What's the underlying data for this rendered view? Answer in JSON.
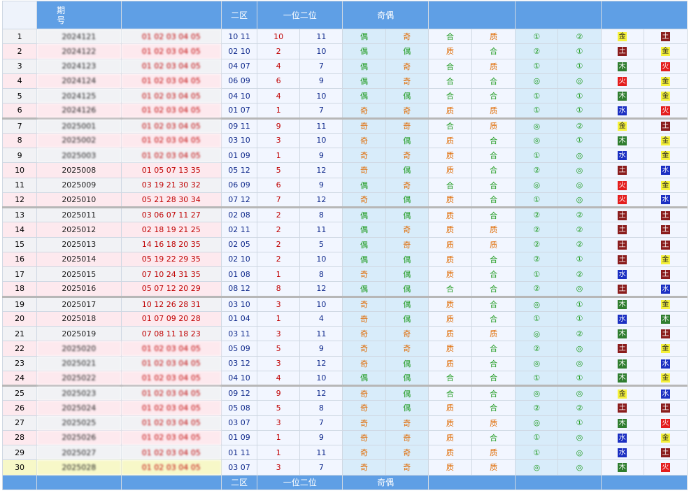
{
  "header": {
    "period_line1": "期",
    "period_line2": "号",
    "col_zone2": "二区",
    "col_pos12": "一位二位",
    "col_oddeven": "奇偶"
  },
  "footer": {
    "col_zone2": "二区",
    "col_pos12": "一位二位",
    "col_oddeven": "奇偶"
  },
  "rows": [
    {
      "idx": "1",
      "period": "2024121",
      "nums": "01 02 03 04 05",
      "zone": "10 11",
      "p1": "10",
      "p2": "11",
      "oe1": "偶",
      "oe2": "奇",
      "cp1": "合",
      "cp2": "质",
      "m1": "①",
      "m2": "②",
      "w1": "金",
      "w2": "土",
      "w1c": "gold",
      "w2c": "earth"
    },
    {
      "idx": "2",
      "period": "2024122",
      "nums": "01 02 03 04 05",
      "zone": "02 10",
      "p1": "2",
      "p2": "10",
      "oe1": "偶",
      "oe2": "偶",
      "cp1": "质",
      "cp2": "合",
      "m1": "②",
      "m2": "①",
      "w1": "土",
      "w2": "金",
      "w1c": "earth",
      "w2c": "gold"
    },
    {
      "idx": "3",
      "period": "2024123",
      "nums": "01 02 03 04 05",
      "zone": "04 07",
      "p1": "4",
      "p2": "7",
      "oe1": "偶",
      "oe2": "奇",
      "cp1": "合",
      "cp2": "质",
      "m1": "①",
      "m2": "①",
      "w1": "木",
      "w2": "火",
      "w1c": "wood",
      "w2c": "fire"
    },
    {
      "idx": "4",
      "period": "2024124",
      "nums": "01 02 03 04 05",
      "zone": "06 09",
      "p1": "6",
      "p2": "9",
      "oe1": "偶",
      "oe2": "奇",
      "cp1": "合",
      "cp2": "合",
      "m1": "◎",
      "m2": "◎",
      "w1": "火",
      "w2": "金",
      "w1c": "fire",
      "w2c": "gold"
    },
    {
      "idx": "5",
      "period": "2024125",
      "nums": "01 02 03 04 05",
      "zone": "04 10",
      "p1": "4",
      "p2": "10",
      "oe1": "偶",
      "oe2": "偶",
      "cp1": "合",
      "cp2": "合",
      "m1": "①",
      "m2": "①",
      "w1": "木",
      "w2": "金",
      "w1c": "wood",
      "w2c": "gold"
    },
    {
      "idx": "6",
      "period": "2024126",
      "nums": "01 02 03 04 05",
      "zone": "01 07",
      "p1": "1",
      "p2": "7",
      "oe1": "奇",
      "oe2": "奇",
      "cp1": "质",
      "cp2": "质",
      "m1": "①",
      "m2": "①",
      "w1": "水",
      "w2": "火",
      "w1c": "water",
      "w2c": "fire"
    },
    {
      "idx": "7",
      "period": "2025001",
      "nums": "01 02 03 04 05",
      "zone": "09 11",
      "p1": "9",
      "p2": "11",
      "oe1": "奇",
      "oe2": "奇",
      "cp1": "合",
      "cp2": "质",
      "m1": "◎",
      "m2": "②",
      "w1": "金",
      "w2": "土",
      "w1c": "gold",
      "w2c": "earth"
    },
    {
      "idx": "8",
      "period": "2025002",
      "nums": "01 02 03 04 05",
      "zone": "03 10",
      "p1": "3",
      "p2": "10",
      "oe1": "奇",
      "oe2": "偶",
      "cp1": "质",
      "cp2": "合",
      "m1": "◎",
      "m2": "①",
      "w1": "木",
      "w2": "金",
      "w1c": "wood",
      "w2c": "gold"
    },
    {
      "idx": "9",
      "period": "2025003",
      "nums": "01 02 03 04 05",
      "zone": "01 09",
      "p1": "1",
      "p2": "9",
      "oe1": "奇",
      "oe2": "奇",
      "cp1": "质",
      "cp2": "合",
      "m1": "①",
      "m2": "◎",
      "w1": "水",
      "w2": "金",
      "w1c": "water",
      "w2c": "gold"
    },
    {
      "idx": "10",
      "period": "2025008",
      "nums": "01 05 07 13 35",
      "zone": "05 12",
      "p1": "5",
      "p2": "12",
      "oe1": "奇",
      "oe2": "偶",
      "cp1": "质",
      "cp2": "合",
      "m1": "②",
      "m2": "◎",
      "w1": "土",
      "w2": "水",
      "w1c": "earth",
      "w2c": "water"
    },
    {
      "idx": "11",
      "period": "2025009",
      "nums": "03 19 21 30 32",
      "zone": "06 09",
      "p1": "6",
      "p2": "9",
      "oe1": "偶",
      "oe2": "奇",
      "cp1": "合",
      "cp2": "合",
      "m1": "◎",
      "m2": "◎",
      "w1": "火",
      "w2": "金",
      "w1c": "fire",
      "w2c": "gold"
    },
    {
      "idx": "12",
      "period": "2025010",
      "nums": "05 21 28 30 34",
      "zone": "07 12",
      "p1": "7",
      "p2": "12",
      "oe1": "奇",
      "oe2": "偶",
      "cp1": "质",
      "cp2": "合",
      "m1": "①",
      "m2": "◎",
      "w1": "火",
      "w2": "水",
      "w1c": "fire",
      "w2c": "water"
    },
    {
      "idx": "13",
      "period": "2025011",
      "nums": "03 06 07 11 27",
      "zone": "02 08",
      "p1": "2",
      "p2": "8",
      "oe1": "偶",
      "oe2": "偶",
      "cp1": "质",
      "cp2": "合",
      "m1": "②",
      "m2": "②",
      "w1": "土",
      "w2": "土",
      "w1c": "earth",
      "w2c": "earth"
    },
    {
      "idx": "14",
      "period": "2025012",
      "nums": "02 18 19 21 25",
      "zone": "02 11",
      "p1": "2",
      "p2": "11",
      "oe1": "偶",
      "oe2": "奇",
      "cp1": "质",
      "cp2": "质",
      "m1": "②",
      "m2": "②",
      "w1": "土",
      "w2": "土",
      "w1c": "earth",
      "w2c": "earth"
    },
    {
      "idx": "15",
      "period": "2025013",
      "nums": "14 16 18 20 35",
      "zone": "02 05",
      "p1": "2",
      "p2": "5",
      "oe1": "偶",
      "oe2": "奇",
      "cp1": "质",
      "cp2": "质",
      "m1": "②",
      "m2": "②",
      "w1": "土",
      "w2": "土",
      "w1c": "earth",
      "w2c": "earth"
    },
    {
      "idx": "16",
      "period": "2025014",
      "nums": "05 19 22 29 35",
      "zone": "02 10",
      "p1": "2",
      "p2": "10",
      "oe1": "偶",
      "oe2": "偶",
      "cp1": "质",
      "cp2": "合",
      "m1": "②",
      "m2": "①",
      "w1": "土",
      "w2": "金",
      "w1c": "earth",
      "w2c": "gold"
    },
    {
      "idx": "17",
      "period": "2025015",
      "nums": "07 10 24 31 35",
      "zone": "01 08",
      "p1": "1",
      "p2": "8",
      "oe1": "奇",
      "oe2": "偶",
      "cp1": "质",
      "cp2": "合",
      "m1": "①",
      "m2": "②",
      "w1": "水",
      "w2": "土",
      "w1c": "water",
      "w2c": "earth"
    },
    {
      "idx": "18",
      "period": "2025016",
      "nums": "05 07 12 20 29",
      "zone": "08 12",
      "p1": "8",
      "p2": "12",
      "oe1": "偶",
      "oe2": "偶",
      "cp1": "合",
      "cp2": "合",
      "m1": "②",
      "m2": "◎",
      "w1": "土",
      "w2": "水",
      "w1c": "earth",
      "w2c": "water"
    },
    {
      "idx": "19",
      "period": "2025017",
      "nums": "10 12 26 28 31",
      "zone": "03 10",
      "p1": "3",
      "p2": "10",
      "oe1": "奇",
      "oe2": "偶",
      "cp1": "质",
      "cp2": "合",
      "m1": "◎",
      "m2": "①",
      "w1": "木",
      "w2": "金",
      "w1c": "wood",
      "w2c": "gold"
    },
    {
      "idx": "20",
      "period": "2025018",
      "nums": "01 07 09 20 28",
      "zone": "01 04",
      "p1": "1",
      "p2": "4",
      "oe1": "奇",
      "oe2": "偶",
      "cp1": "质",
      "cp2": "合",
      "m1": "①",
      "m2": "①",
      "w1": "水",
      "w2": "木",
      "w1c": "water",
      "w2c": "wood"
    },
    {
      "idx": "21",
      "period": "2025019",
      "nums": "07 08 11 18 23",
      "zone": "03 11",
      "p1": "3",
      "p2": "11",
      "oe1": "奇",
      "oe2": "奇",
      "cp1": "质",
      "cp2": "质",
      "m1": "◎",
      "m2": "②",
      "w1": "木",
      "w2": "土",
      "w1c": "wood",
      "w2c": "earth"
    },
    {
      "idx": "22",
      "period": "2025020",
      "nums": "01 02 03 04 05",
      "zone": "05 09",
      "p1": "5",
      "p2": "9",
      "oe1": "奇",
      "oe2": "奇",
      "cp1": "质",
      "cp2": "合",
      "m1": "②",
      "m2": "◎",
      "w1": "土",
      "w2": "金",
      "w1c": "earth",
      "w2c": "gold"
    },
    {
      "idx": "23",
      "period": "2025021",
      "nums": "01 02 03 04 05",
      "zone": "03 12",
      "p1": "3",
      "p2": "12",
      "oe1": "奇",
      "oe2": "偶",
      "cp1": "质",
      "cp2": "合",
      "m1": "◎",
      "m2": "◎",
      "w1": "木",
      "w2": "水",
      "w1c": "wood",
      "w2c": "water"
    },
    {
      "idx": "24",
      "period": "2025022",
      "nums": "01 02 03 04 05",
      "zone": "04 10",
      "p1": "4",
      "p2": "10",
      "oe1": "偶",
      "oe2": "偶",
      "cp1": "合",
      "cp2": "合",
      "m1": "①",
      "m2": "①",
      "w1": "木",
      "w2": "金",
      "w1c": "wood",
      "w2c": "gold"
    },
    {
      "idx": "25",
      "period": "2025023",
      "nums": "01 02 03 04 05",
      "zone": "09 12",
      "p1": "9",
      "p2": "12",
      "oe1": "奇",
      "oe2": "偶",
      "cp1": "合",
      "cp2": "合",
      "m1": "◎",
      "m2": "◎",
      "w1": "金",
      "w2": "水",
      "w1c": "gold",
      "w2c": "water"
    },
    {
      "idx": "26",
      "period": "2025024",
      "nums": "01 02 03 04 05",
      "zone": "05 08",
      "p1": "5",
      "p2": "8",
      "oe1": "奇",
      "oe2": "偶",
      "cp1": "质",
      "cp2": "合",
      "m1": "②",
      "m2": "②",
      "w1": "土",
      "w2": "土",
      "w1c": "earth",
      "w2c": "earth"
    },
    {
      "idx": "27",
      "period": "2025025",
      "nums": "01 02 03 04 05",
      "zone": "03 07",
      "p1": "3",
      "p2": "7",
      "oe1": "奇",
      "oe2": "奇",
      "cp1": "质",
      "cp2": "质",
      "m1": "◎",
      "m2": "①",
      "w1": "木",
      "w2": "火",
      "w1c": "wood",
      "w2c": "fire"
    },
    {
      "idx": "28",
      "period": "2025026",
      "nums": "01 02 03 04 05",
      "zone": "01 09",
      "p1": "1",
      "p2": "9",
      "oe1": "奇",
      "oe2": "奇",
      "cp1": "质",
      "cp2": "合",
      "m1": "①",
      "m2": "◎",
      "w1": "水",
      "w2": "金",
      "w1c": "water",
      "w2c": "gold"
    },
    {
      "idx": "29",
      "period": "2025027",
      "nums": "01 02 03 04 05",
      "zone": "01 11",
      "p1": "1",
      "p2": "11",
      "oe1": "奇",
      "oe2": "奇",
      "cp1": "质",
      "cp2": "质",
      "m1": "①",
      "m2": "◎",
      "w1": "水",
      "w2": "土",
      "w1c": "water",
      "w2c": "earth"
    },
    {
      "idx": "30",
      "period": "2025028",
      "nums": "01 02 03 04 05",
      "zone": "03 07",
      "p1": "3",
      "p2": "7",
      "oe1": "奇",
      "oe2": "奇",
      "cp1": "质",
      "cp2": "质",
      "m1": "◎",
      "m2": "◎",
      "w1": "木",
      "w2": "火",
      "w1c": "wood",
      "w2c": "fire"
    }
  ]
}
